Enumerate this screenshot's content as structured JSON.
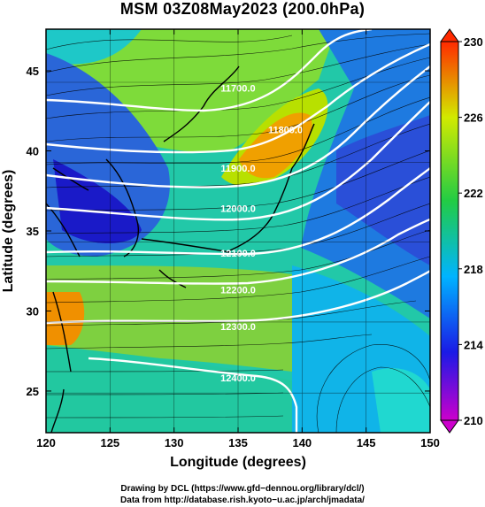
{
  "title": "MSM 03Z08May2023 (200.0hPa)",
  "chart_data": {
    "type": "heatmap",
    "xlabel": "Longitude (degrees)",
    "ylabel": "Latitude  (degrees)",
    "xlim": [
      120,
      150
    ],
    "ylim": [
      22.4,
      47.6
    ],
    "xticks": [
      120,
      125,
      130,
      135,
      140,
      145,
      150
    ],
    "yticks": [
      25,
      30,
      35,
      40,
      45
    ],
    "colorbar": {
      "min": 210,
      "max": 230,
      "ticks": [
        210,
        214,
        218,
        222,
        226,
        230
      ],
      "colors": [
        "#cc00cc",
        "#1a1ae6",
        "#00b4ff",
        "#22cc44",
        "#d2ea00",
        "#ff2a00"
      ]
    },
    "contours": [
      {
        "label": "11700.0",
        "lon": 135.0,
        "lat": 43.7
      },
      {
        "label": "11800.0",
        "lon": 138.7,
        "lat": 41.1
      },
      {
        "label": "11900.0",
        "lon": 135.0,
        "lat": 38.7
      },
      {
        "label": "12000.0",
        "lon": 135.0,
        "lat": 36.2
      },
      {
        "label": "12100.0",
        "lon": 135.0,
        "lat": 33.4
      },
      {
        "label": "12200.0",
        "lon": 135.0,
        "lat": 31.1
      },
      {
        "label": "12300.0",
        "lon": 135.0,
        "lat": 28.8
      },
      {
        "label": "12400.0",
        "lon": 135.0,
        "lat": 25.6
      }
    ]
  },
  "credits": {
    "line1": "Drawing by DCL (https://www.gfd−dennou.org/library/dcl/)",
    "line2": "Data from http://database.rish.kyoto−u.ac.jp/arch/jmadata/"
  }
}
